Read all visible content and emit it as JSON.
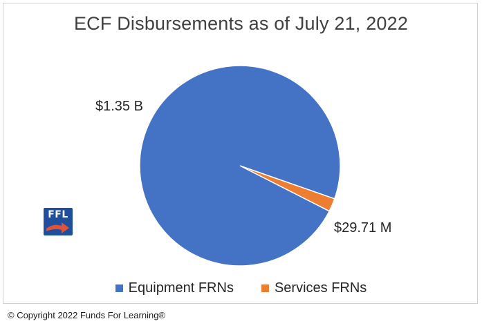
{
  "chart_data": {
    "type": "pie",
    "title": "ECF Disbursements as of July 21, 2022",
    "slices": [
      {
        "name": "Equipment FRNs",
        "value": 1350000000,
        "label": "$1.35 B",
        "color": "#4472c4"
      },
      {
        "name": "Services FRNs",
        "value": 29710000,
        "label": "$29.71 M",
        "color": "#ed7d31"
      }
    ],
    "legend_position": "bottom"
  },
  "logo": {
    "text": "FFL"
  },
  "footer": {
    "copyright": "© Copyright 2022 Funds For Learning®"
  }
}
